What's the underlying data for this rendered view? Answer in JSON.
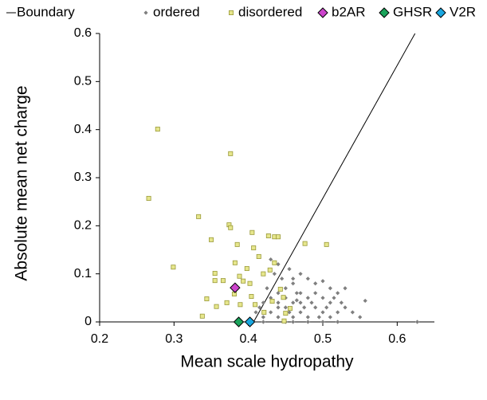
{
  "chart_data": {
    "type": "scatter",
    "x_label": "Mean scale hydropathy",
    "y_label": "Absolute mean net charge",
    "xlim": [
      0.2,
      0.65
    ],
    "ylim": [
      0,
      0.6
    ],
    "xticks": [
      0.2,
      0.3,
      0.4,
      0.5,
      0.6
    ],
    "yticks": [
      0,
      0.1,
      0.2,
      0.3,
      0.4,
      0.5,
      0.6
    ],
    "grid": false,
    "legend": "top",
    "series": [
      {
        "name": "Boundary",
        "mode": "line",
        "color": "#000000",
        "x": [
          0.407,
          0.624
        ],
        "y": [
          0,
          0.6
        ]
      },
      {
        "name": "ordered",
        "mode": "marker",
        "marker": "small-diamond",
        "color": "#7f7f7f",
        "x": [
          0.42,
          0.43,
          0.44,
          0.45,
          0.46,
          0.47,
          0.48,
          0.49,
          0.5,
          0.51,
          0.52,
          0.44,
          0.45,
          0.46,
          0.47,
          0.48,
          0.43,
          0.42,
          0.41,
          0.44,
          0.45,
          0.46,
          0.47,
          0.49,
          0.5,
          0.51,
          0.52,
          0.53,
          0.54,
          0.55,
          0.557,
          0.627,
          0.5,
          0.49,
          0.48,
          0.47,
          0.46,
          0.44,
          0.43,
          0.435,
          0.45,
          0.455,
          0.465,
          0.475,
          0.485,
          0.495,
          0.505,
          0.515,
          0.525,
          0.53,
          0.44,
          0.425,
          0.415,
          0.42,
          0.46,
          0.48,
          0.5,
          0.52,
          0.445,
          0.455,
          0.465,
          0.51
        ],
        "y": [
          0.01,
          0.02,
          0.03,
          0.05,
          0.04,
          0.02,
          0.01,
          0.03,
          0.02,
          0.01,
          0.02,
          0.06,
          0.07,
          0.08,
          0.06,
          0.05,
          0.05,
          0.04,
          0.02,
          0.01,
          0,
          0.01,
          0.04,
          0.06,
          0.05,
          0.04,
          0.06,
          0.03,
          0.02,
          0.01,
          0.044,
          0,
          0.085,
          0.08,
          0.09,
          0.1,
          0.09,
          0.12,
          0.13,
          0.1,
          0.03,
          0.02,
          0.06,
          0.03,
          0.04,
          0.01,
          0.03,
          0.05,
          0.04,
          0.07,
          0.04,
          0.07,
          0.03,
          0,
          0,
          0,
          0,
          0,
          0.09,
          0.11,
          0.045,
          0.07
        ]
      },
      {
        "name": "disordered",
        "mode": "marker",
        "marker": "square",
        "color": "#e6e68c",
        "x": [
          0.278,
          0.376,
          0.266,
          0.333,
          0.374,
          0.376,
          0.35,
          0.299,
          0.405,
          0.427,
          0.435,
          0.44,
          0.476,
          0.505,
          0.385,
          0.407,
          0.355,
          0.338,
          0.357,
          0.366,
          0.382,
          0.388,
          0.414,
          0.42,
          0.429,
          0.393,
          0.402,
          0.371,
          0.381,
          0.389,
          0.409,
          0.447,
          0.45,
          0.456,
          0.421,
          0.432,
          0.404,
          0.443,
          0.398,
          0.355,
          0.435,
          0.344,
          0.448
        ],
        "y": [
          0.401,
          0.35,
          0.257,
          0.219,
          0.202,
          0.196,
          0.171,
          0.114,
          0.186,
          0.179,
          0.177,
          0.177,
          0.163,
          0.161,
          0.161,
          0.154,
          0.101,
          0.012,
          0.032,
          0.086,
          0.123,
          0.095,
          0.136,
          0.1,
          0.108,
          0.085,
          0.08,
          0.04,
          0.058,
          0.036,
          0.036,
          0.051,
          0.018,
          0.028,
          0.02,
          0.043,
          0.053,
          0.068,
          0.111,
          0.086,
          0.123,
          0.048,
          0.002
        ]
      },
      {
        "name": "b2AR",
        "mode": "marker",
        "marker": "diamond",
        "color": "#cc44cc",
        "x": [
          0.382
        ],
        "y": [
          0.071
        ]
      },
      {
        "name": "GHSR",
        "mode": "marker",
        "marker": "diamond",
        "color": "#1aa35a",
        "x": [
          0.387
        ],
        "y": [
          0
        ]
      },
      {
        "name": "V2R",
        "mode": "marker",
        "marker": "diamond",
        "color": "#1aa7e0",
        "x": [
          0.402
        ],
        "y": [
          0
        ]
      }
    ]
  }
}
